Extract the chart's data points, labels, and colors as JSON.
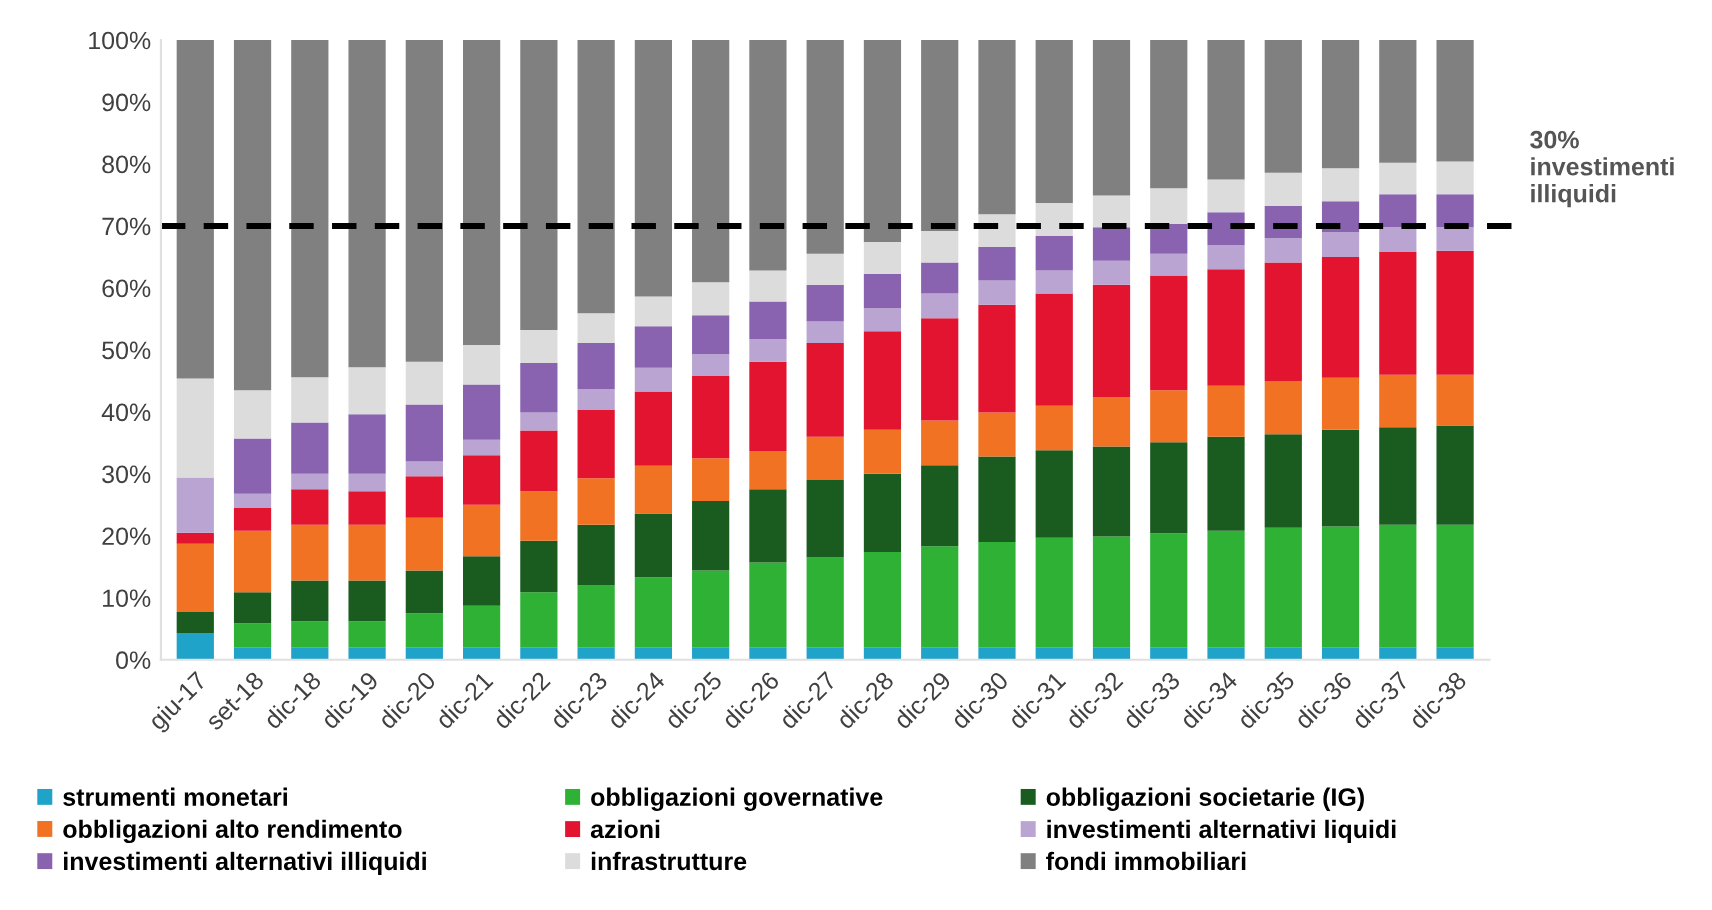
{
  "chart_data": {
    "type": "bar",
    "stacked": true,
    "categories": [
      "giu-17",
      "set-18",
      "dic-18",
      "dic-19",
      "dic-20",
      "dic-21",
      "dic-22",
      "dic-23",
      "dic-24",
      "dic-25",
      "dic-26",
      "dic-27",
      "dic-28",
      "dic-29",
      "dic-30",
      "dic-31",
      "dic-32",
      "dic-33",
      "dic-34",
      "dic-35",
      "dic-36",
      "dic-37",
      "dic-38"
    ],
    "series": [
      {
        "name": "strumenti monetari",
        "color": "#1fa3c8",
        "values": [
          4.3,
          2,
          2,
          2,
          2,
          2,
          2,
          2,
          2,
          2,
          2,
          2,
          2,
          2,
          2,
          2,
          2,
          2,
          2,
          2,
          2,
          2,
          2
        ]
      },
      {
        "name": "obbligazioni governative",
        "color": "#2eb135",
        "values": [
          0,
          3.9,
          4.2,
          4.2,
          5.5,
          6.7,
          8.9,
          10,
          11.3,
          12.4,
          13.7,
          14.5,
          15.4,
          16.3,
          17,
          17.7,
          17.9,
          18.4,
          18.8,
          19.3,
          19.5,
          19.8,
          19.8
        ]
      },
      {
        "name": "obbligazioni societarie (IG)",
        "color": "#1a5c1f",
        "values": [
          3.4,
          5,
          6.6,
          6.6,
          6.9,
          8,
          8.3,
          9.8,
          10.3,
          11.2,
          11.8,
          12.5,
          12.6,
          13.1,
          13.8,
          14.1,
          14.5,
          14.7,
          15.2,
          15.1,
          15.6,
          15.7,
          16
        ]
      },
      {
        "name": "obbligazioni alto rendimento",
        "color": "#f07222",
        "values": [
          11,
          9.9,
          9,
          9,
          8.5,
          8.3,
          8,
          7.5,
          7.7,
          6.9,
          6.2,
          7,
          7.1,
          7.2,
          7.1,
          7.2,
          8,
          8.4,
          8.2,
          8.5,
          8.4,
          8.5,
          8.2
        ]
      },
      {
        "name": "azioni",
        "color": "#e3142f",
        "values": [
          1.8,
          3.7,
          5.7,
          5.4,
          6.7,
          8,
          9.8,
          11,
          12,
          13.3,
          14.4,
          15.1,
          15.9,
          16.5,
          17.4,
          18.1,
          18.1,
          18.5,
          18.8,
          19.2,
          19.5,
          19.8,
          20
        ]
      },
      {
        "name": "investimenti alternativi liquidi",
        "color": "#b9a4d2",
        "values": [
          8.9,
          2.3,
          2.5,
          2.8,
          2.4,
          2.5,
          2.9,
          3.4,
          3.8,
          3.5,
          3.6,
          3.5,
          3.7,
          4,
          3.9,
          3.7,
          3.9,
          3.5,
          3.9,
          3.9,
          4,
          4,
          3.8
        ]
      },
      {
        "name": "investimenti alternativi illiquidi",
        "color": "#8a63b0",
        "values": [
          0,
          8.9,
          8.3,
          9.6,
          9.2,
          8.9,
          8,
          7.4,
          6.7,
          6.3,
          6.1,
          5.9,
          5.6,
          5,
          5.4,
          5.6,
          5.4,
          4.8,
          5.3,
          5.2,
          5,
          5.3,
          5.3
        ]
      },
      {
        "name": "infrastrutture",
        "color": "#dcdcdc",
        "values": [
          16,
          7.8,
          7.3,
          7.6,
          6.9,
          6.4,
          5.3,
          4.8,
          4.8,
          5.3,
          5,
          5,
          5.1,
          5.1,
          5.3,
          5.3,
          5.1,
          5.8,
          5.3,
          5.4,
          5.3,
          5.1,
          5.3
        ]
      },
      {
        "name": "fondi immobiliari",
        "color": "#808080",
        "values": [
          54.6,
          56.5,
          54.4,
          52.8,
          51.9,
          49.2,
          46.8,
          44.1,
          41.4,
          39.1,
          37.2,
          34.5,
          32.6,
          30.8,
          28.1,
          26.3,
          25.1,
          23.9,
          22.5,
          21.4,
          20.7,
          19.8,
          19.6
        ]
      }
    ],
    "ylim": [
      0,
      100
    ],
    "yticks": [
      {
        "value": 0,
        "label": "0%"
      },
      {
        "value": 10,
        "label": "10%"
      },
      {
        "value": 20,
        "label": "20%"
      },
      {
        "value": 30,
        "label": "30%"
      },
      {
        "value": 40,
        "label": "40%"
      },
      {
        "value": 50,
        "label": "50%"
      },
      {
        "value": 60,
        "label": "60%"
      },
      {
        "value": 70,
        "label": "70%"
      },
      {
        "value": 80,
        "label": "80%"
      },
      {
        "value": 90,
        "label": "90%"
      },
      {
        "value": 100,
        "label": "100%"
      }
    ],
    "ref_lines": [
      {
        "axis": "y",
        "value": 70,
        "label": "30%\ninvestimenti\nilliquidi",
        "color": "#000000",
        "line_style": "dashed"
      }
    ],
    "legend": "bottom",
    "grid": false
  }
}
